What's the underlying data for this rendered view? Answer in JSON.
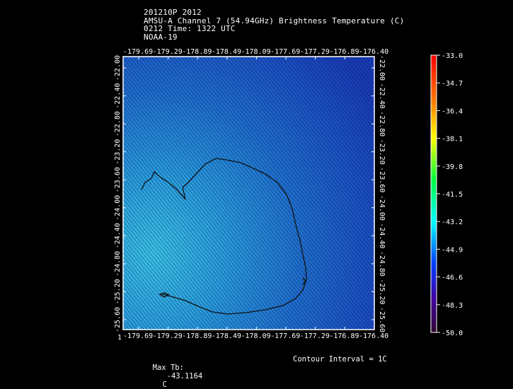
{
  "header": {
    "line1": "201210P 2012",
    "line2": "AMSU-A Channel 7 (54.94GHz) Brightness Temperature (C)",
    "line3": "0212 Time: 1322 UTC",
    "line4": "NOAA-19"
  },
  "map": {
    "lon_ticks_top": [
      "-179.69",
      "-179.29",
      "-178.89",
      "-178.49",
      "-178.09",
      "-177.69",
      "-177.29",
      "-176.89",
      "-176.40"
    ],
    "lon_ticks_bottom": [
      "-179.69",
      "-179.29",
      "-178.89",
      "-178.49",
      "-178.09",
      "-177.69",
      "-177.29",
      "-176.89",
      "-176.40"
    ],
    "lat_ticks_left": [
      "-22.00",
      "-22.40",
      "-22.80",
      "-23.20",
      "-23.60",
      "-24.00",
      "-24.40",
      "-24.80",
      "-25.20",
      "-25.60"
    ],
    "lat_ticks_right": [
      "-22.00",
      "-22.40",
      "-22.80",
      "-23.20",
      "-23.60",
      "-24.00",
      "-24.40",
      "-24.80",
      "-25.20",
      "-25.60"
    ],
    "corner_label": "1"
  },
  "colorbar": {
    "labels": [
      "-33.0",
      "-34.7",
      "-36.4",
      "-38.1",
      "-39.8",
      "-41.5",
      "-43.2",
      "-44.9",
      "-46.6",
      "-48.3",
      "-50.0"
    ],
    "colors": [
      "#ff0000",
      "#ff8000",
      "#ffff00",
      "#00ff00",
      "#00ffff",
      "#0000ff",
      "#400040"
    ]
  },
  "footer": {
    "max_label": "Max Tb:",
    "max_value": "-43.1164",
    "max_unit": "C",
    "contour_label": "Contour Interval = 1C"
  }
}
